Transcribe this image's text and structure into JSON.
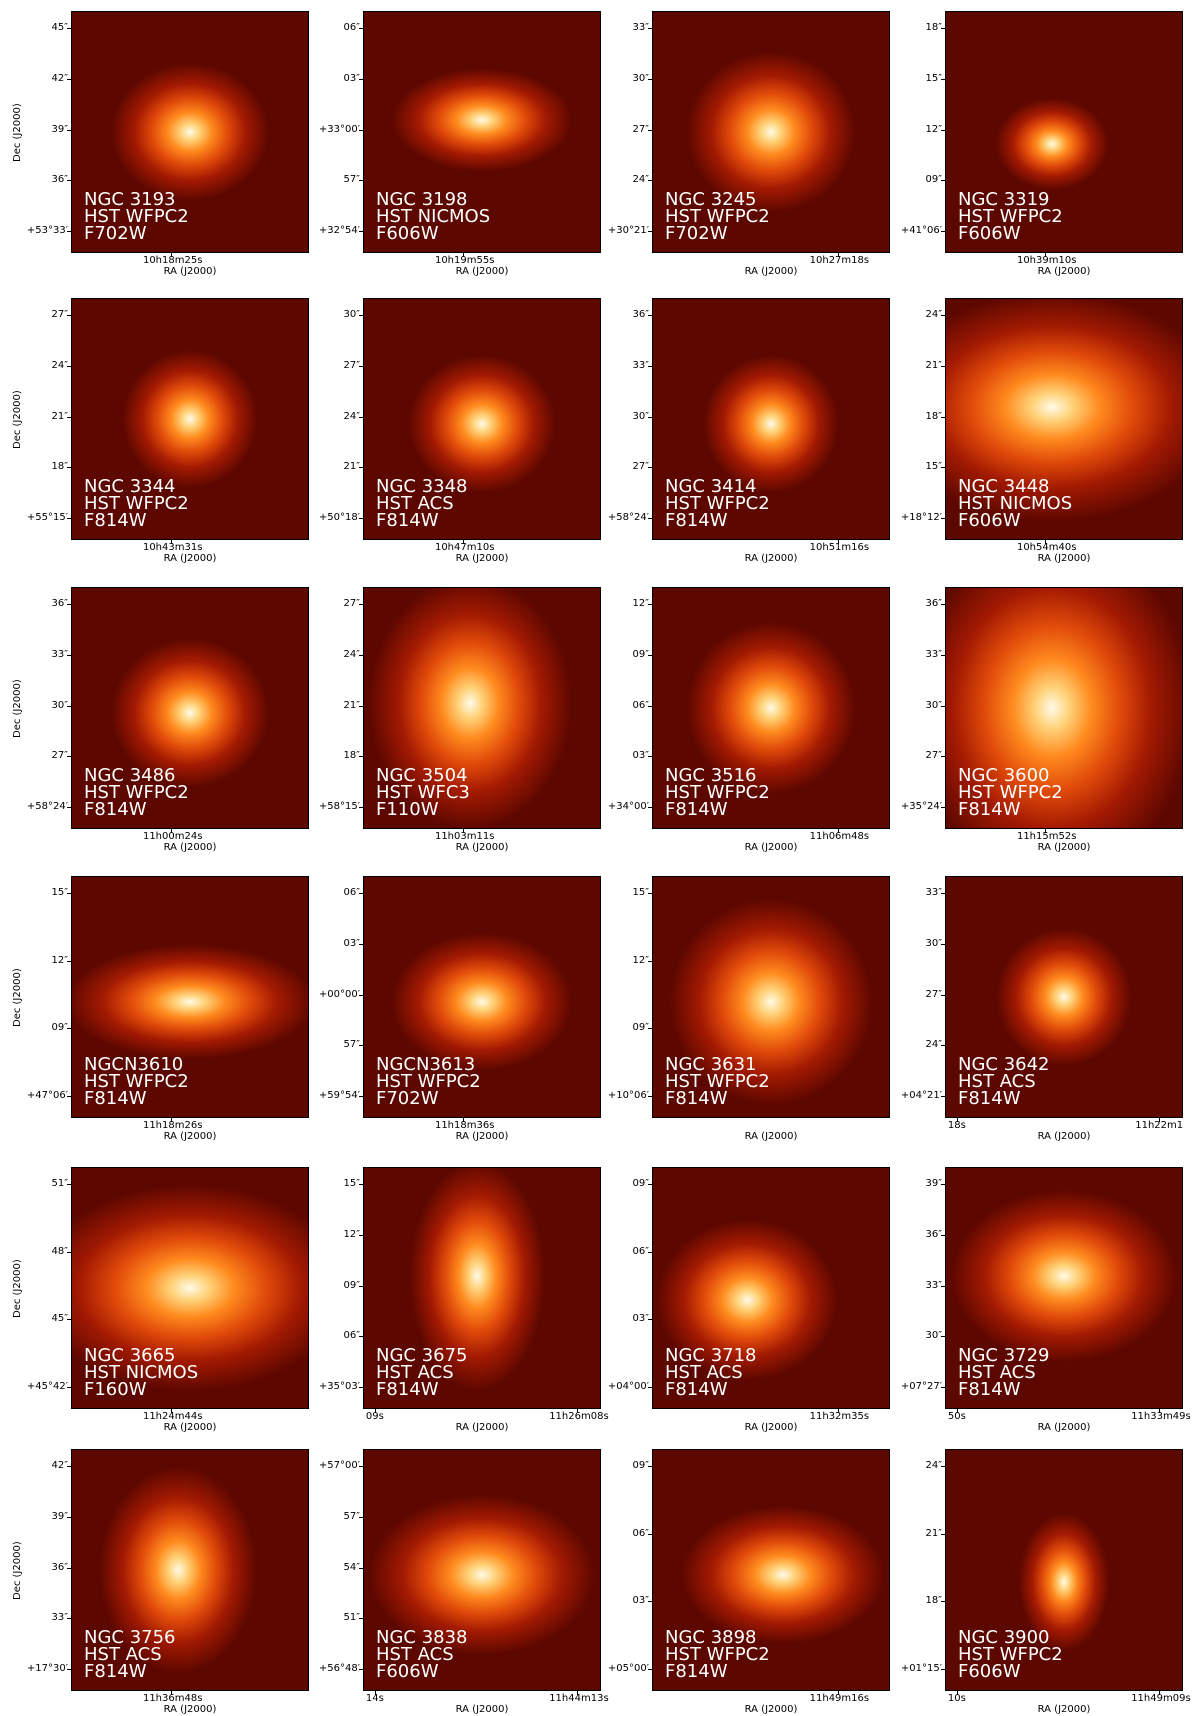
{
  "xlabel": "RA (J2000)",
  "ylabel": "Dec (J2000)",
  "panels": [
    {
      "name": "NGC 3193",
      "instrument": "HST WFPC2",
      "filter": "F702W",
      "yticks": [
        "45″",
        "42″",
        "39″",
        "36″",
        "+53°33′"
      ],
      "xticks": [
        "10h18m25s"
      ]
    },
    {
      "name": "NGC 3198",
      "instrument": "HST NICMOS",
      "filter": "F606W",
      "yticks": [
        "06″",
        "03″",
        "+33°00′",
        "57″",
        "+32°54′"
      ],
      "xticks": [
        "10h19m55s"
      ]
    },
    {
      "name": "NGC 3245",
      "instrument": "HST WFPC2",
      "filter": "F702W",
      "yticks": [
        "33″",
        "30″",
        "27″",
        "24″",
        "+30°21′"
      ],
      "xticks": [
        "10h27m18s"
      ]
    },
    {
      "name": "NGC 3319",
      "instrument": "HST WFPC2",
      "filter": "F606W",
      "yticks": [
        "18″",
        "15″",
        "12″",
        "09″",
        "+41°06′"
      ],
      "xticks": [
        "10h39m10s"
      ]
    },
    {
      "name": "NGC 3344",
      "instrument": "HST WFPC2",
      "filter": "F814W",
      "yticks": [
        "27″",
        "24″",
        "21″",
        "18″",
        "+55°15′"
      ],
      "xticks": [
        "10h43m31s"
      ]
    },
    {
      "name": "NGC 3348",
      "instrument": "HST ACS",
      "filter": "F814W",
      "yticks": [
        "30″",
        "27″",
        "24″",
        "21″",
        "+50°18′"
      ],
      "xticks": [
        "10h47m10s"
      ]
    },
    {
      "name": "NGC 3414",
      "instrument": "HST WFPC2",
      "filter": "F814W",
      "yticks": [
        "36″",
        "33″",
        "30″",
        "27″",
        "+58°24′"
      ],
      "xticks": [
        "10h51m16s"
      ]
    },
    {
      "name": "NGC 3448",
      "instrument": "HST NICMOS",
      "filter": "F606W",
      "yticks": [
        "24″",
        "21″",
        "18″",
        "15″",
        "+18°12′"
      ],
      "xticks": [
        "10h54m40s"
      ]
    },
    {
      "name": "NGC 3486",
      "instrument": "HST WFPC2",
      "filter": "F814W",
      "yticks": [
        "36″",
        "33″",
        "30″",
        "27″",
        "+58°24′"
      ],
      "xticks": [
        "11h00m24s"
      ]
    },
    {
      "name": "NGC 3504",
      "instrument": "HST WFC3",
      "filter": "F110W",
      "yticks": [
        "27″",
        "24″",
        "21″",
        "18″",
        "+58°15′"
      ],
      "xticks": [
        "11h03m11s"
      ]
    },
    {
      "name": "NGC 3516",
      "instrument": "HST WFPC2",
      "filter": "F814W",
      "yticks": [
        "12″",
        "09″",
        "06″",
        "03″",
        "+34°00′"
      ],
      "xticks": [
        "11h06m48s"
      ]
    },
    {
      "name": "NGC 3600",
      "instrument": "HST WFPC2",
      "filter": "F814W",
      "yticks": [
        "36″",
        "33″",
        "30″",
        "27″",
        "+35°24′"
      ],
      "xticks": [
        "11h15m52s"
      ]
    },
    {
      "name": "NGCN3610",
      "instrument": "HST WFPC2",
      "filter": "F814W",
      "yticks": [
        "15″",
        "12″",
        "09″",
        "+47°06′"
      ],
      "xticks": [
        "11h18m26s"
      ]
    },
    {
      "name": "NGCN3613",
      "instrument": "HST WFPC2",
      "filter": "F702W",
      "yticks": [
        "06″",
        "03″",
        "+00°00′",
        "57″",
        "+59°54′"
      ],
      "xticks": [
        "11h18m36s"
      ]
    },
    {
      "name": "NGC 3631",
      "instrument": "HST WFPC2",
      "filter": "F814W",
      "yticks": [
        "15″",
        "12″",
        "09″",
        "+10°06′"
      ],
      "xticks": []
    },
    {
      "name": "NGC 3642",
      "instrument": "HST ACS",
      "filter": "F814W",
      "yticks": [
        "33″",
        "30″",
        "27″",
        "24″",
        "+04°21′"
      ],
      "xticks": [
        "18s",
        "11h22m1"
      ]
    },
    {
      "name": "NGC 3665",
      "instrument": "HST NICMOS",
      "filter": "F160W",
      "yticks": [
        "51″",
        "48″",
        "45″",
        "+45°42′"
      ],
      "xticks": [
        "11h24m44s"
      ]
    },
    {
      "name": "NGC 3675",
      "instrument": "HST ACS",
      "filter": "F814W",
      "yticks": [
        "15″",
        "12″",
        "09″",
        "06″",
        "+35°03′"
      ],
      "xticks": [
        "09s",
        "11h26m08s"
      ]
    },
    {
      "name": "NGC 3718",
      "instrument": "HST ACS",
      "filter": "F814W",
      "yticks": [
        "09″",
        "06″",
        "03″",
        "+04°00′"
      ],
      "xticks": [
        "11h32m35s"
      ]
    },
    {
      "name": "NGC 3729",
      "instrument": "HST ACS",
      "filter": "F814W",
      "yticks": [
        "39″",
        "36″",
        "33″",
        "30″",
        "+07°27′"
      ],
      "xticks": [
        "50s",
        "11h33m49s"
      ]
    },
    {
      "name": "NGC 3756",
      "instrument": "HST ACS",
      "filter": "F814W",
      "yticks": [
        "42″",
        "39″",
        "36″",
        "33″",
        "+17°30′"
      ],
      "xticks": [
        "11h36m48s"
      ]
    },
    {
      "name": "NGC 3838",
      "instrument": "HST ACS",
      "filter": "F606W",
      "yticks": [
        "+57°00′",
        "57″",
        "54″",
        "51″",
        "+56°48′"
      ],
      "xticks": [
        "14s",
        "11h44m13s"
      ]
    },
    {
      "name": "NGC 3898",
      "instrument": "HST WFPC2",
      "filter": "F814W",
      "yticks": [
        "09″",
        "06″",
        "03″",
        "+05°00′"
      ],
      "xticks": [
        "11h49m16s"
      ]
    },
    {
      "name": "NGC 3900",
      "instrument": "HST WFPC2",
      "filter": "F606W",
      "yticks": [
        "24″",
        "21″",
        "18″",
        "+01°15′"
      ],
      "xticks": [
        "10s",
        "11h49m09s"
      ]
    }
  ]
}
